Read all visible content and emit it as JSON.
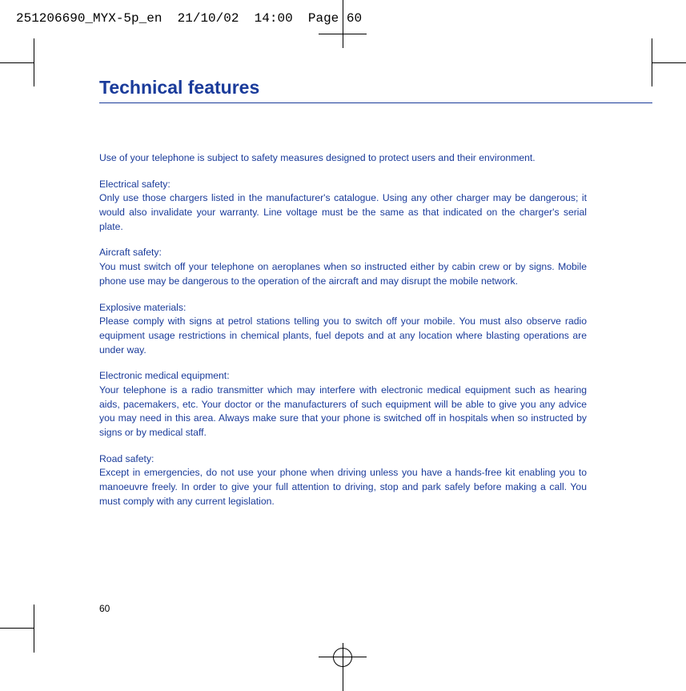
{
  "header": {
    "filecode": "251206690_MYX-5p_en",
    "date": "21/10/02",
    "time": "14:00",
    "page_label": "Page 60"
  },
  "title": "Technical features",
  "colors": {
    "text": "#1a3b9a",
    "rule": "#1a3b9a",
    "header_text": "#000000",
    "background": "#ffffff"
  },
  "intro": "Use of your telephone is subject to safety measures designed to protect users and their environment.",
  "sections": [
    {
      "heading": "Electrical safety:",
      "text": "Only use those chargers listed in the manufacturer's catalogue. Using any other charger may be dangerous; it would also invalidate your warranty. Line voltage must be the same as that indicated on the charger's serial plate."
    },
    {
      "heading": "Aircraft safety:",
      "text": "You must switch off your telephone on aeroplanes when so instructed either by cabin crew or by signs. Mobile phone use may be dangerous to the operation of the aircraft and may disrupt the mobile network."
    },
    {
      "heading": "Explosive materials:",
      "text": "Please comply with signs at petrol stations telling you to switch off your mobile. You must also observe radio equipment usage restrictions in chemical plants, fuel depots and at any location where blasting operations are under way."
    },
    {
      "heading": "Electronic medical equipment:",
      "text": "Your telephone is a radio transmitter which may interfere with electronic medical equipment such as hearing aids, pacemakers, etc. Your doctor or the manufacturers of such equipment will be able to give you any advice you may need in this area. Always make sure that your phone is switched off in hospitals when so instructed by signs or by medical staff."
    },
    {
      "heading": "Road safety:",
      "text": "Except in emergencies, do not use your phone when driving unless you have a hands-free kit enabling you to manoeuvre freely. In order to give your full attention to driving, stop and park safely before making a call. You must comply with any current legislation."
    }
  ],
  "page_number": "60"
}
